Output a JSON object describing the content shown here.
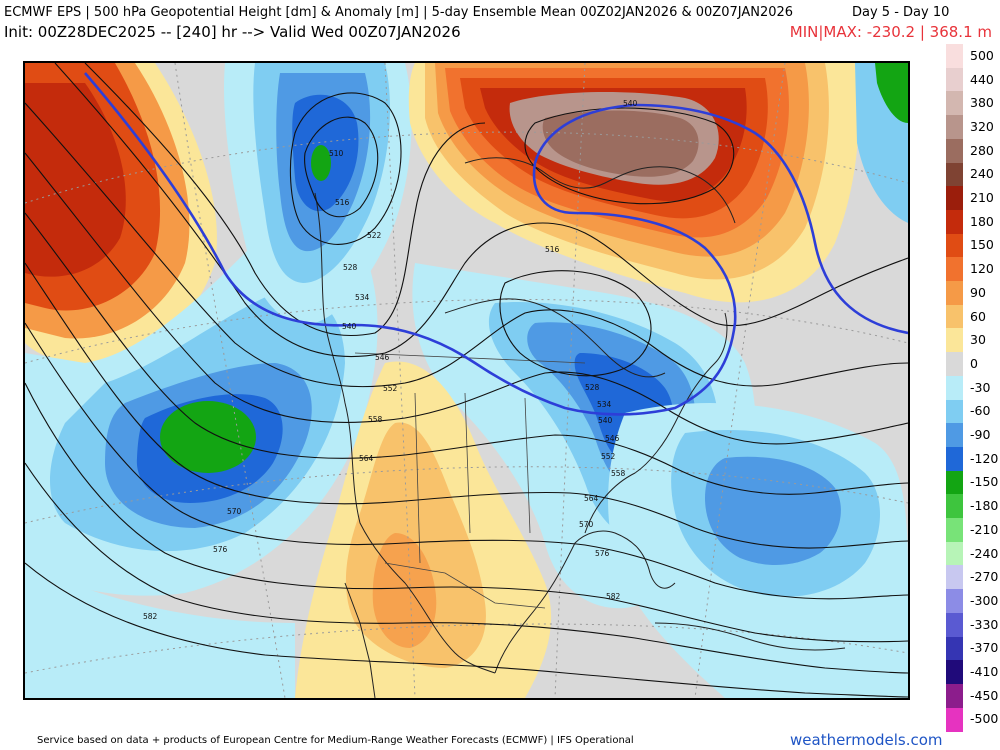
{
  "header": {
    "title_line": "ECMWF EPS | 500 hPa Geopotential Height [dm] & Anomaly [m] | 5-day Ensemble Mean 00Z02JAN2026 & 00Z07JAN2026",
    "day_range": "Day 5 - Day 10",
    "init_line": "Init: 00Z28DEC2025 -- [240] hr --> Valid Wed 00Z07JAN2026",
    "minmax": "MIN|MAX: -230.2 | 368.1 m"
  },
  "map": {
    "contour_labels": [
      "510",
      "516",
      "522",
      "528",
      "534",
      "540",
      "546",
      "552",
      "558",
      "564",
      "570",
      "576",
      "582",
      "540",
      "516",
      "528",
      "534",
      "540",
      "546",
      "552",
      "558",
      "564",
      "570",
      "576",
      "582"
    ]
  },
  "colorbar": {
    "labels": [
      "500",
      "440",
      "380",
      "320",
      "280",
      "240",
      "210",
      "180",
      "150",
      "120",
      "90",
      "60",
      "30",
      "0",
      "-30",
      "-60",
      "-90",
      "-120",
      "-150",
      "-180",
      "-210",
      "-240",
      "-270",
      "-300",
      "-330",
      "-370",
      "-410",
      "-450",
      "-500"
    ],
    "colors": [
      "#f9dede",
      "#e8cfcf",
      "#d3b7b0",
      "#b8958c",
      "#9b6d60",
      "#7f4333",
      "#9b1e0c",
      "#c42b0c",
      "#e04c14",
      "#f1722e",
      "#f59a47",
      "#f8c26b",
      "#fbe699",
      "#d9d9d9",
      "#b8ecf8",
      "#7fcdf2",
      "#4f9ae4",
      "#1f68d8",
      "#13a513",
      "#3ec53e",
      "#78e378",
      "#b7f4b7",
      "#c8c8f0",
      "#8c8ce6",
      "#5a5ad2",
      "#3535b3",
      "#200a7a",
      "#8c1d8c",
      "#e633c0"
    ]
  },
  "footer": {
    "attribution": "Service based on data + products of European Centre for Medium-Range Weather Forecasts (ECMWF) | IFS Operational",
    "brand": "weathermodels.com"
  }
}
